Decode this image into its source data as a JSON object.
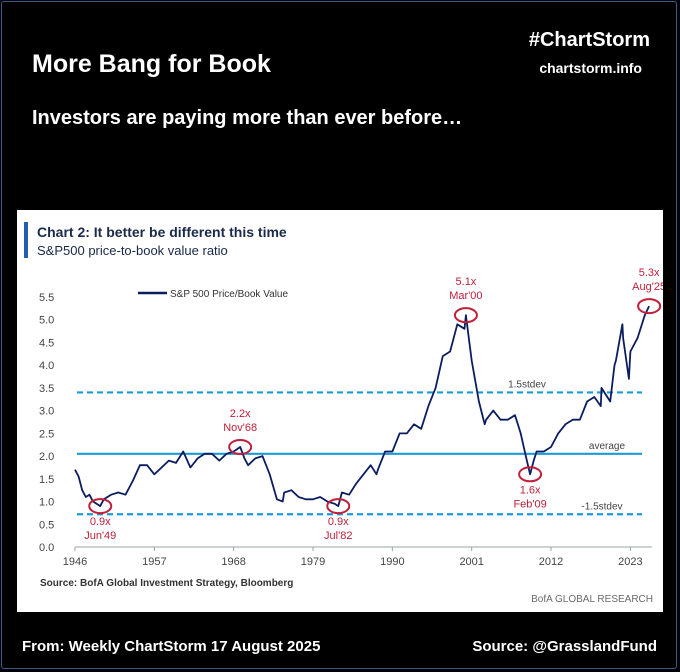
{
  "header": {
    "title": "More Bang for Book",
    "hashtag": "#ChartStorm",
    "site": "chartstorm.info",
    "subtitle": "Investors are paying more than ever before…"
  },
  "footer": {
    "from": "From: Weekly ChartStorm 17 August 2025",
    "source": "Source: @GrasslandFund"
  },
  "colors": {
    "line": "#0b1d5f",
    "band": "#1b9bd7",
    "marker": "#c0203a",
    "accent": "#1f5fae"
  },
  "chart_data": {
    "type": "line",
    "title": "Chart 2: It better be different this time",
    "subtitle": "S&P500 price-to-book value ratio",
    "legend": "S&P 500 Price/Book Value",
    "legend_position": "top-left",
    "source": "Source: BofA Global Investment Strategy, Bloomberg",
    "credit": "BofA GLOBAL RESEARCH",
    "xlim": [
      1946,
      2026
    ],
    "ylim": [
      0,
      5.5
    ],
    "xticks": [
      1946,
      1957,
      1968,
      1979,
      1990,
      2001,
      2012,
      2023
    ],
    "yticks": [
      "0.0",
      "0.5",
      "1.0",
      "1.5",
      "2.0",
      "2.5",
      "3.0",
      "3.5",
      "4.0",
      "4.5",
      "5.0",
      "5.5"
    ],
    "reference_lines": [
      {
        "label": "1.5stdev",
        "value": 3.4,
        "style": "dashed"
      },
      {
        "label": "average",
        "value": 2.05,
        "style": "solid"
      },
      {
        "label": "-1.5stdev",
        "value": 0.72,
        "style": "dashed"
      }
    ],
    "annotations": [
      {
        "value_label": "0.9x",
        "date_label": "Jun'49",
        "x": 1949.5,
        "y": 0.9,
        "label_side": "below"
      },
      {
        "value_label": "2.2x",
        "date_label": "Nov'68",
        "x": 1968.9,
        "y": 2.2,
        "label_side": "above"
      },
      {
        "value_label": "0.9x",
        "date_label": "Jul'82",
        "x": 1982.5,
        "y": 0.9,
        "label_side": "below"
      },
      {
        "value_label": "5.1x",
        "date_label": "Mar'00",
        "x": 2000.2,
        "y": 5.1,
        "label_side": "above"
      },
      {
        "value_label": "1.6x",
        "date_label": "Feb'09",
        "x": 2009.1,
        "y": 1.6,
        "label_side": "below"
      },
      {
        "value_label": "5.3x",
        "date_label": "Aug'25",
        "x": 2025.6,
        "y": 5.3,
        "label_side": "above"
      }
    ],
    "series": [
      {
        "name": "S&P 500 Price/Book Value",
        "x": [
          1946,
          1946.5,
          1947,
          1947.5,
          1948,
          1948.5,
          1949,
          1949.5,
          1950,
          1951,
          1952,
          1953,
          1954,
          1955,
          1956,
          1957,
          1958,
          1959,
          1960,
          1961,
          1962,
          1963,
          1964,
          1965,
          1966,
          1967,
          1968,
          1968.9,
          1969.5,
          1970,
          1971,
          1972,
          1973,
          1974,
          1974.8,
          1975,
          1976,
          1977,
          1978,
          1979,
          1980,
          1981,
          1982,
          1982.5,
          1983,
          1984,
          1985,
          1986,
          1987,
          1987.8,
          1988,
          1989,
          1990,
          1991,
          1992,
          1993,
          1994,
          1995,
          1996,
          1997,
          1998,
          1999,
          2000,
          2000.2,
          2001,
          2002,
          2002.8,
          2003,
          2004,
          2005,
          2006,
          2007,
          2007.8,
          2008.5,
          2009.1,
          2009.6,
          2010,
          2011,
          2012,
          2013,
          2014,
          2015,
          2016,
          2017,
          2018,
          2018.9,
          2019,
          2020.2,
          2020.8,
          2021,
          2021.9,
          2022,
          2022.8,
          2023,
          2024,
          2025,
          2025.6
        ],
        "y": [
          1.7,
          1.55,
          1.25,
          1.1,
          1.15,
          1.0,
          0.95,
          0.9,
          1.05,
          1.15,
          1.2,
          1.15,
          1.45,
          1.8,
          1.8,
          1.6,
          1.75,
          1.9,
          1.85,
          2.1,
          1.75,
          1.95,
          2.05,
          2.05,
          1.9,
          2.05,
          2.1,
          2.2,
          1.95,
          1.8,
          1.95,
          2.0,
          1.6,
          1.05,
          1.0,
          1.2,
          1.25,
          1.1,
          1.05,
          1.05,
          1.1,
          1.0,
          0.95,
          0.9,
          1.2,
          1.15,
          1.4,
          1.6,
          1.8,
          1.6,
          1.7,
          2.1,
          2.1,
          2.5,
          2.5,
          2.7,
          2.6,
          3.1,
          3.5,
          4.2,
          4.3,
          4.9,
          4.8,
          5.1,
          4.1,
          3.2,
          2.7,
          2.8,
          3.0,
          2.8,
          2.8,
          2.9,
          2.5,
          2.0,
          1.6,
          1.9,
          2.1,
          2.1,
          2.2,
          2.5,
          2.7,
          2.8,
          2.8,
          3.2,
          3.3,
          3.1,
          3.5,
          3.2,
          4.0,
          4.1,
          4.9,
          4.6,
          3.7,
          4.3,
          4.6,
          5.1,
          5.3
        ]
      }
    ]
  }
}
